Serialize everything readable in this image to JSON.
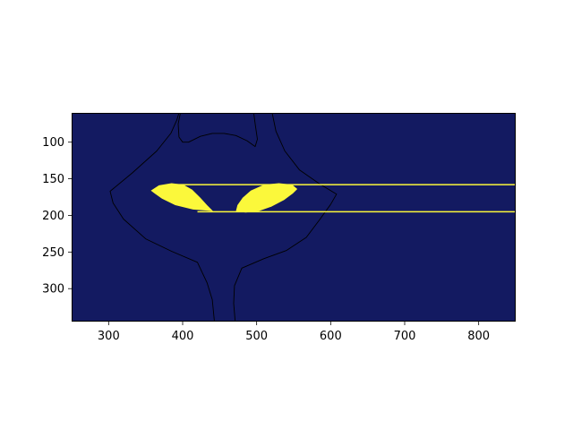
{
  "chart_data": {
    "type": "heatmap",
    "title": "",
    "xlabel": "",
    "ylabel": "",
    "xlim": [
      250,
      850
    ],
    "ylim": [
      345,
      60
    ],
    "xticks": [
      300,
      400,
      500,
      600,
      700,
      800
    ],
    "yticks": [
      100,
      150,
      200,
      250,
      300
    ],
    "grid": false,
    "legend": "none",
    "colors": {
      "background": "#131a61",
      "fill": "#fbf83b",
      "outline": "#000000"
    },
    "eyes": [
      {
        "name": "left-eye",
        "points": [
          [
            357,
            166
          ],
          [
            368,
            159
          ],
          [
            385,
            156
          ],
          [
            401,
            158
          ],
          [
            413,
            165
          ],
          [
            424,
            176
          ],
          [
            433,
            186
          ],
          [
            441,
            194
          ],
          [
            414,
            192
          ],
          [
            390,
            186
          ],
          [
            372,
            177
          ],
          [
            362,
            170
          ]
        ]
      },
      {
        "name": "right-eye",
        "points": [
          [
            472,
            194
          ],
          [
            485,
            196
          ],
          [
            503,
            194
          ],
          [
            520,
            188
          ],
          [
            537,
            179
          ],
          [
            549,
            170
          ],
          [
            555,
            164
          ],
          [
            548,
            158
          ],
          [
            530,
            156
          ],
          [
            510,
            158
          ],
          [
            492,
            166
          ],
          [
            481,
            176
          ],
          [
            474,
            186
          ]
        ]
      }
    ],
    "horizontal_lines": [
      {
        "name": "upper-line",
        "y": 158,
        "x_start": 385,
        "x_end": 850
      },
      {
        "name": "lower-line",
        "y": 195,
        "x_start": 420,
        "x_end": 850
      }
    ],
    "outline": {
      "head": [
        [
          443,
          345
        ],
        [
          440,
          315
        ],
        [
          433,
          292
        ],
        [
          426,
          277
        ],
        [
          420,
          264
        ],
        [
          385,
          249
        ],
        [
          350,
          232
        ],
        [
          320,
          205
        ],
        [
          306,
          183
        ],
        [
          302,
          167
        ],
        [
          332,
          142
        ],
        [
          365,
          112
        ],
        [
          384,
          88
        ],
        [
          392,
          70
        ],
        [
          395,
          60
        ]
      ],
      "ear_left": [
        [
          397,
          60
        ],
        [
          394,
          75
        ],
        [
          395,
          93
        ],
        [
          400,
          100
        ],
        [
          408,
          100
        ],
        [
          424,
          92
        ],
        [
          440,
          88
        ],
        [
          456,
          88
        ],
        [
          472,
          91
        ],
        [
          487,
          98
        ],
        [
          498,
          106
        ],
        [
          501,
          96
        ],
        [
          498,
          75
        ],
        [
          496,
          60
        ]
      ],
      "head_right": [
        [
          521,
          60
        ],
        [
          526,
          85
        ],
        [
          538,
          112
        ],
        [
          558,
          138
        ],
        [
          585,
          157
        ],
        [
          608,
          171
        ],
        [
          600,
          185
        ],
        [
          585,
          206
        ],
        [
          567,
          230
        ],
        [
          540,
          248
        ],
        [
          510,
          259
        ],
        [
          480,
          272
        ],
        [
          470,
          296
        ],
        [
          469,
          320
        ],
        [
          471,
          345
        ]
      ]
    }
  }
}
